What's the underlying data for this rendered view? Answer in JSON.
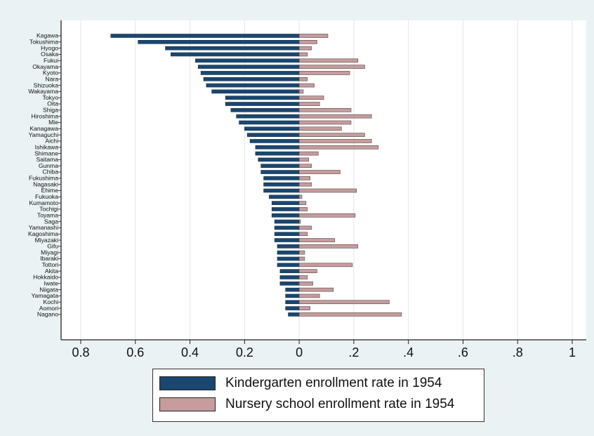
{
  "chart_data": {
    "type": "bar",
    "orientation": "horizontal",
    "categories": [
      "Kagawa",
      "Tokushima",
      "Hyogo",
      "Osaka",
      "Fukui",
      "Okayama",
      "Kyoto",
      "Nara",
      "Shizuoka",
      "Wakayama",
      "Tokyo",
      "Oita",
      "Shiga",
      "Hiroshima",
      "Mie",
      "Kanagawa",
      "Yamaguchi",
      "Aichi",
      "Ishikawa",
      "Shimane",
      "Saitama",
      "Gunma",
      "Chiba",
      "Fukushima",
      "Nagasaki",
      "Ehime",
      "Fukuoka",
      "Kumamoto",
      "Tochigi",
      "Toyama",
      "Saga",
      "Yamanashi",
      "Kagoshima",
      "Miyazaki",
      "Gifu",
      "Miyagi",
      "Ibaraki",
      "Tottori",
      "Akita",
      "Hokkaido",
      "Iwate",
      "Niigata",
      "Yamagata",
      "Kochi",
      "Aomori",
      "Nagano"
    ],
    "series": [
      {
        "name": "Kindergarten enrollment rate in 1954",
        "color": "#1a476f",
        "direction": "left",
        "values": [
          0.69,
          0.59,
          0.49,
          0.47,
          0.38,
          0.37,
          0.36,
          0.35,
          0.34,
          0.32,
          0.27,
          0.27,
          0.25,
          0.23,
          0.22,
          0.2,
          0.19,
          0.18,
          0.16,
          0.16,
          0.15,
          0.14,
          0.14,
          0.13,
          0.13,
          0.13,
          0.11,
          0.1,
          0.1,
          0.1,
          0.09,
          0.09,
          0.09,
          0.09,
          0.08,
          0.08,
          0.08,
          0.08,
          0.07,
          0.07,
          0.07,
          0.05,
          0.05,
          0.05,
          0.05,
          0.04
        ]
      },
      {
        "name": "Nursery school enrollment rate in 1954",
        "color": "#c69c9c",
        "direction": "right",
        "values": [
          0.105,
          0.065,
          0.045,
          0.03,
          0.215,
          0.24,
          0.185,
          0.03,
          0.055,
          0.015,
          0.09,
          0.075,
          0.19,
          0.265,
          0.19,
          0.155,
          0.24,
          0.265,
          0.29,
          0.07,
          0.035,
          0.045,
          0.15,
          0.04,
          0.045,
          0.21,
          0.01,
          0.025,
          0.03,
          0.205,
          0.005,
          0.045,
          0.03,
          0.13,
          0.215,
          0.02,
          0.02,
          0.195,
          0.065,
          0.03,
          0.05,
          0.125,
          0.075,
          0.33,
          0.04,
          0.375
        ]
      }
    ],
    "xticks": [
      "0.8",
      "0.6",
      "0.4",
      "0.2",
      "0",
      ".2",
      ".4",
      ".6",
      ".8",
      "1"
    ],
    "xtick_values": [
      -0.8,
      -0.6,
      -0.4,
      -0.2,
      0,
      0.2,
      0.4,
      0.6,
      0.8,
      1
    ],
    "xlim": [
      -0.8,
      1
    ],
    "grid": "vertical",
    "legend_position": "bottom"
  }
}
